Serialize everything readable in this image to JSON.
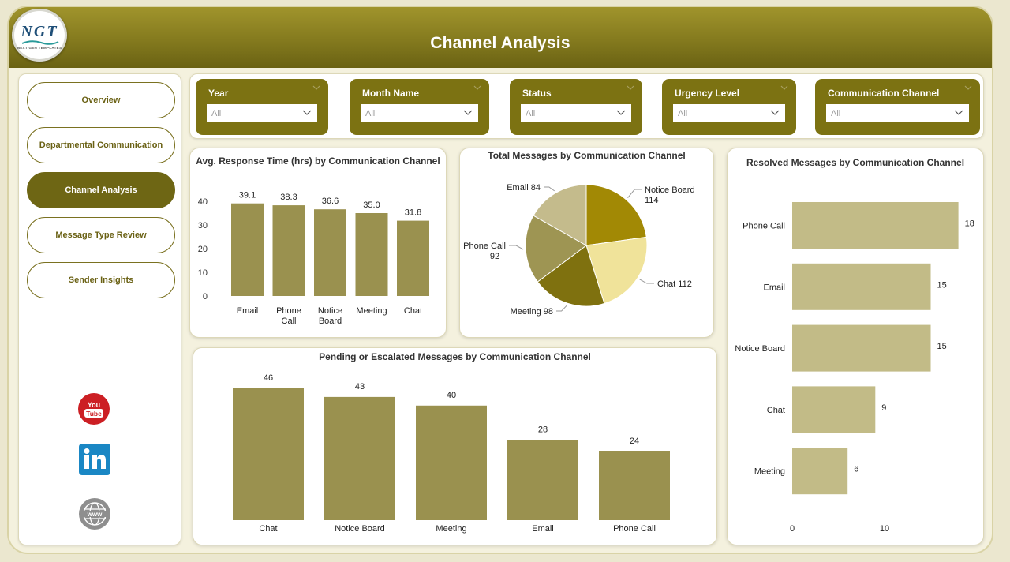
{
  "header": {
    "title": "Channel Analysis"
  },
  "logo": {
    "text": "NGT",
    "subtitle": "NEXT GEN TEMPLATES"
  },
  "sidebar": {
    "items": [
      {
        "label": "Overview",
        "active": false
      },
      {
        "label": "Departmental Communication",
        "active": false
      },
      {
        "label": "Channel Analysis",
        "active": true
      },
      {
        "label": "Message Type Review",
        "active": false
      },
      {
        "label": "Sender Insights",
        "active": false
      }
    ],
    "social": [
      {
        "icon": "youtube-icon",
        "label": "You Tube"
      },
      {
        "icon": "linkedin-icon",
        "label": "in"
      },
      {
        "icon": "globe-icon",
        "label": "www"
      }
    ]
  },
  "filters": [
    {
      "label": "Year",
      "value": "All"
    },
    {
      "label": "Month Name",
      "value": "All"
    },
    {
      "label": "Status",
      "value": "All"
    },
    {
      "label": "Urgency Level",
      "value": "All"
    },
    {
      "label": "Communication Channel",
      "value": "All"
    }
  ],
  "colors": {
    "accent": "#7c7212",
    "bar": "#9a914f",
    "bar_light": "#c2bb87",
    "pie": [
      "#a28905",
      "#f0e39a",
      "#7f710f",
      "#9e9553",
      "#c4bb8c"
    ]
  },
  "chart_data": [
    {
      "id": "avg-response",
      "type": "bar",
      "title": "Avg. Response Time (hrs) by Communication Channel",
      "categories": [
        "Email",
        "Phone Call",
        "Notice Board",
        "Meeting",
        "Chat"
      ],
      "values": [
        39.1,
        38.3,
        36.6,
        35.0,
        31.8
      ],
      "data_labels": [
        "39.1",
        "38.3",
        "36.6",
        "35.0",
        "31.8"
      ],
      "yticks": [
        0,
        10,
        20,
        30,
        40
      ],
      "ylim": [
        0,
        40
      ],
      "grid": false
    },
    {
      "id": "total-messages",
      "type": "pie",
      "title": "Total Messages by Communication Channel",
      "categories": [
        "Notice Board",
        "Chat",
        "Meeting",
        "Phone Call",
        "Email"
      ],
      "values": [
        114,
        112,
        98,
        92,
        84
      ]
    },
    {
      "id": "resolved-messages",
      "type": "bar",
      "orientation": "horizontal",
      "title": "Resolved Messages by Communication Channel",
      "categories": [
        "Phone Call",
        "Email",
        "Notice Board",
        "Chat",
        "Meeting"
      ],
      "values": [
        18,
        15,
        15,
        9,
        6
      ],
      "xticks": [
        0,
        10
      ],
      "xlim": [
        0,
        20
      ]
    },
    {
      "id": "pending-escalated",
      "type": "bar",
      "title": "Pending or Escalated Messages by Communication Channel",
      "categories": [
        "Chat",
        "Notice Board",
        "Meeting",
        "Email",
        "Phone Call"
      ],
      "values": [
        46,
        43,
        40,
        28,
        24
      ],
      "ylim": [
        0,
        46
      ]
    }
  ]
}
